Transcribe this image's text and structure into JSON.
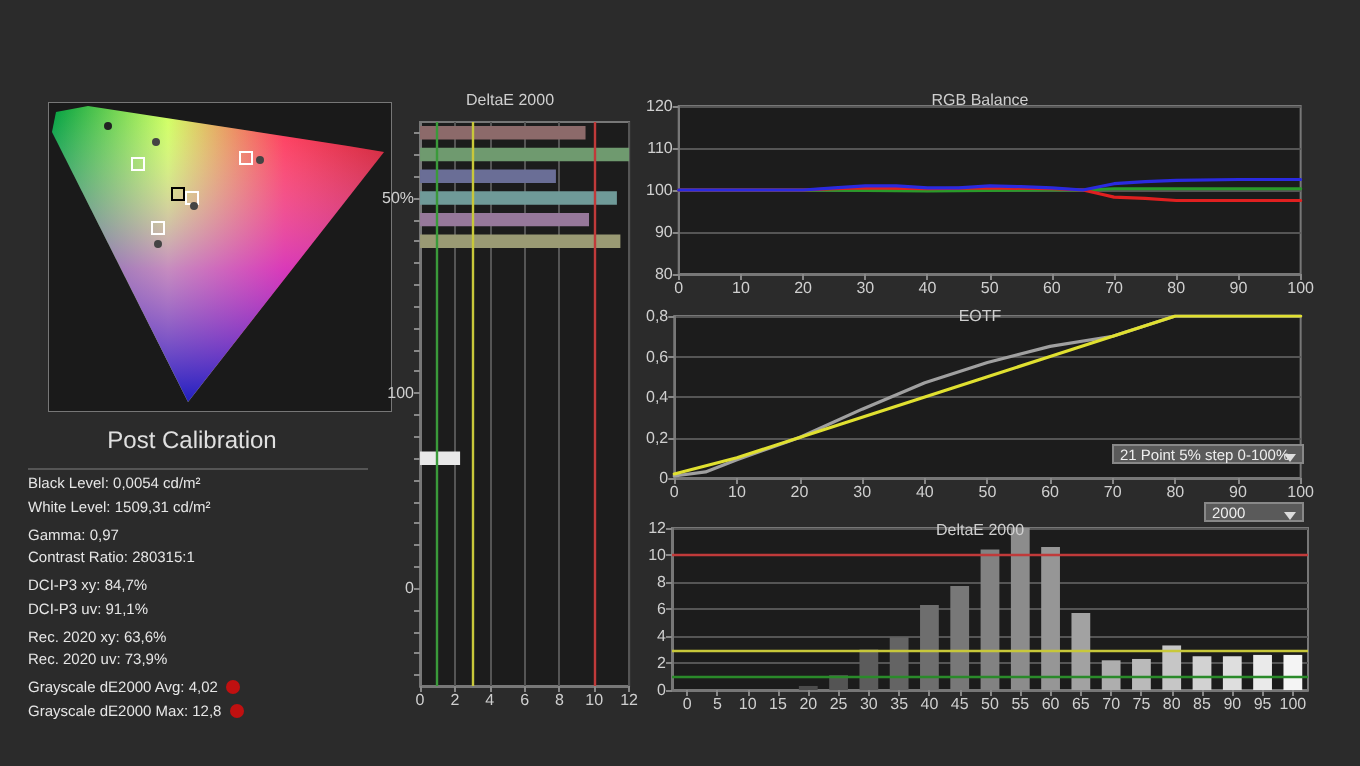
{
  "chart_data": [
    {
      "type": "other",
      "title": "Post Calibration",
      "annotations": [
        "Black Level: 0,0054 cd/m²",
        "White Level: 1509,31 cd/m²",
        "Gamma: 0,97",
        "Contrast Ratio: 280315:1",
        "DCI-P3 xy: 84,7%",
        "DCI-P3 uv: 91,1%",
        "Rec. 2020 xy: 63,6%",
        "Rec. 2020 uv: 73,9%",
        "Grayscale dE2000 Avg: 4,02",
        "Grayscale dE2000 Max: 12,8"
      ]
    },
    {
      "type": "bar",
      "orientation": "horizontal",
      "title": "DeltaE 2000",
      "categories": [
        null,
        null,
        null,
        "50%",
        null,
        null,
        null,
        null,
        null,
        null,
        null,
        null,
        "100",
        null,
        null,
        null,
        null,
        null,
        null,
        null,
        null,
        "0",
        null,
        null,
        null,
        null
      ],
      "values": [
        9.5,
        12,
        7.8,
        11.3,
        9.7,
        11.5,
        null,
        null,
        null,
        null,
        null,
        null,
        null,
        null,
        null,
        2.3,
        null,
        null,
        null,
        null,
        null,
        null,
        null,
        null,
        null,
        null
      ],
      "colors": [
        "#8c6a6a",
        "#6f9a6f",
        "#6a6e96",
        "#6f9a98",
        "#96789a",
        "#9a9a74",
        null,
        null,
        null,
        null,
        null,
        null,
        null,
        null,
        null,
        "#e8e8e8",
        null,
        null,
        null,
        null,
        null,
        null,
        null,
        null,
        null,
        null
      ],
      "xlim": [
        0,
        12
      ],
      "xticks": [
        0,
        2,
        4,
        6,
        8,
        10,
        12
      ],
      "grid": "x",
      "ref_lines": [
        {
          "axis": "x",
          "value": 1,
          "color": "#3a9a3a"
        },
        {
          "axis": "x",
          "value": 3,
          "color": "#c8c83a"
        },
        {
          "axis": "x",
          "value": 10,
          "color": "#c03a3a"
        }
      ]
    },
    {
      "type": "line",
      "title": "RGB Balance",
      "xlim": [
        0,
        100
      ],
      "xticks": [
        0,
        10,
        20,
        30,
        40,
        50,
        60,
        70,
        80,
        90,
        100
      ],
      "ylim": [
        80,
        120
      ],
      "yticks": [
        80,
        90,
        100,
        110,
        120
      ],
      "grid": "y",
      "marker": "none",
      "series": [
        {
          "color": "#2a9a2a",
          "x": [
            0,
            20,
            40,
            60,
            65,
            70,
            80,
            90,
            100
          ],
          "values": [
            100,
            100,
            99.8,
            100,
            100,
            100.3,
            100.3,
            100.3,
            100.3
          ]
        },
        {
          "color": "#e02020",
          "x": [
            0,
            20,
            25,
            30,
            40,
            50,
            60,
            65,
            68,
            70,
            75,
            80,
            90,
            100
          ],
          "values": [
            100,
            100,
            100.3,
            100.5,
            100.3,
            100.5,
            100.3,
            100,
            99,
            98.3,
            98,
            97.5,
            97.5,
            97.5
          ]
        },
        {
          "color": "#2a2ae0",
          "x": [
            0,
            20,
            25,
            30,
            35,
            40,
            45,
            50,
            55,
            60,
            65,
            70,
            75,
            80,
            90,
            100
          ],
          "values": [
            100,
            100,
            100.5,
            101,
            101,
            100.5,
            100.5,
            101,
            100.8,
            100.5,
            100,
            101.5,
            102,
            102.3,
            102.5,
            102.5
          ]
        }
      ]
    },
    {
      "type": "line",
      "title": "EOTF",
      "xlim": [
        0,
        100
      ],
      "xticks": [
        0,
        10,
        20,
        30,
        40,
        50,
        60,
        70,
        80,
        90,
        100
      ],
      "ylim": [
        0,
        0.8
      ],
      "yticks": [
        0,
        {
          "value": 0.2,
          "label": "0,2"
        },
        {
          "value": 0.4,
          "label": "0,4"
        },
        {
          "value": 0.6,
          "label": "0,6"
        },
        {
          "value": 0.8,
          "label": "0,8"
        }
      ],
      "grid": "y",
      "marker": "none",
      "annotations": [
        "21 Point 5% step 0-100%",
        "2000"
      ],
      "series": [
        {
          "color": "#a0a0a0",
          "x": [
            0,
            5,
            10,
            20,
            30,
            40,
            50,
            60,
            70,
            80,
            100
          ],
          "values": [
            0.01,
            0.03,
            0.09,
            0.2,
            0.34,
            0.47,
            0.57,
            0.65,
            0.7,
            0.8,
            0.8
          ]
        },
        {
          "color": "#e0e030",
          "x": [
            0,
            10,
            20,
            30,
            40,
            50,
            60,
            70,
            80,
            100
          ],
          "values": [
            0.02,
            0.1,
            0.2,
            0.3,
            0.4,
            0.5,
            0.6,
            0.7,
            0.8,
            0.8
          ]
        }
      ]
    },
    {
      "type": "bar",
      "title": "DeltaE 2000",
      "categories": [
        "0",
        "5",
        "10",
        "15",
        "20",
        "25",
        "30",
        "35",
        "40",
        "45",
        "50",
        "55",
        "60",
        "65",
        "70",
        "75",
        "80",
        "85",
        "90",
        "95",
        "100"
      ],
      "values": [
        0,
        0,
        0,
        0,
        0.3,
        1.1,
        3,
        3.9,
        6.3,
        7.7,
        10.4,
        12,
        10.6,
        5.7,
        2.2,
        2.3,
        3.3,
        2.5,
        2.5,
        2.6,
        2.6
      ],
      "colors": [
        "#3a3a3a",
        "#3e3e3e",
        "#424242",
        "#464646",
        "#4c4c4c",
        "#545454",
        "#5c5c5c",
        "#646464",
        "#6e6e6e",
        "#787878",
        "#828282",
        "#8c8c8c",
        "#969696",
        "#a2a2a2",
        "#aeaeae",
        "#bababa",
        "#c6c6c6",
        "#d2d2d2",
        "#dedede",
        "#eaeaea",
        "#f4f4f4"
      ],
      "ylim": [
        0,
        12
      ],
      "yticks": [
        0,
        2,
        4,
        6,
        8,
        10,
        12
      ],
      "grid": "y",
      "ref_lines": [
        {
          "axis": "y",
          "value": 1,
          "color": "#2a8a2a"
        },
        {
          "axis": "y",
          "value": 3,
          "color": "#c8c83a"
        },
        {
          "axis": "y",
          "value": 10,
          "color": "#c03a3a"
        }
      ]
    }
  ]
}
